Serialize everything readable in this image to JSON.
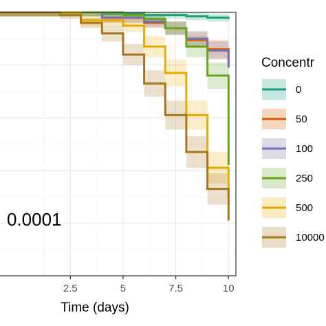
{
  "chart_data": {
    "type": "line",
    "xlabel": "Time (days)",
    "ylabel": "",
    "xlim": [
      -1.0,
      10.35
    ],
    "ylim": [
      0.0,
      1.0
    ],
    "x_ticks": [
      2.5,
      5,
      7.5,
      10
    ],
    "x_tick_labels": [
      "2.5",
      "5",
      "7.5",
      "10"
    ],
    "grid": true,
    "legend_title": "Concentr",
    "legend_position": "right",
    "annotation": "0.0001",
    "series": [
      {
        "name": "0",
        "color": "#1b9e77",
        "x": [
          -1,
          4,
          6,
          8,
          9,
          10
        ],
        "y": [
          1.0,
          0.995,
          0.99,
          0.985,
          0.98,
          0.975
        ],
        "ci": [
          0.015,
          0.015,
          0.015,
          0.015,
          0.015,
          0.015
        ]
      },
      {
        "name": "50",
        "color": "#d95f02",
        "x": [
          -1,
          4,
          6,
          7,
          8,
          9,
          10
        ],
        "y": [
          1.0,
          0.98,
          0.96,
          0.94,
          0.895,
          0.86,
          0.8
        ],
        "ci": [
          0.015,
          0.02,
          0.02,
          0.025,
          0.03,
          0.035,
          0.04
        ]
      },
      {
        "name": "100",
        "color": "#7570b3",
        "x": [
          -1,
          4,
          6,
          7,
          8,
          9,
          10
        ],
        "y": [
          1.0,
          0.98,
          0.965,
          0.94,
          0.9,
          0.855,
          0.79
        ],
        "ci": [
          0.015,
          0.02,
          0.02,
          0.025,
          0.03,
          0.035,
          0.045
        ]
      },
      {
        "name": "250",
        "color": "#66a61e",
        "x": [
          -1,
          5,
          6,
          7,
          8,
          9,
          10
        ],
        "y": [
          1.0,
          0.99,
          0.975,
          0.94,
          0.87,
          0.76,
          0.42
        ],
        "ci": [
          0.015,
          0.015,
          0.02,
          0.025,
          0.04,
          0.05,
          0.06
        ]
      },
      {
        "name": "500",
        "color": "#e6ab02",
        "x": [
          -1,
          3,
          5,
          6,
          7,
          8,
          9,
          10
        ],
        "y": [
          1.0,
          0.97,
          0.95,
          0.87,
          0.77,
          0.61,
          0.41,
          0.3
        ],
        "ci": [
          0.015,
          0.02,
          0.025,
          0.04,
          0.05,
          0.055,
          0.06,
          0.06
        ]
      },
      {
        "name": "10000",
        "color": "#a6761d",
        "x": [
          -1,
          2,
          3,
          4,
          5,
          6,
          7,
          8,
          9,
          10
        ],
        "y": [
          1.0,
          0.99,
          0.96,
          0.92,
          0.84,
          0.73,
          0.61,
          0.47,
          0.33,
          0.21
        ],
        "ci": [
          0.015,
          0.015,
          0.02,
          0.03,
          0.04,
          0.05,
          0.055,
          0.06,
          0.06,
          0.06
        ]
      }
    ]
  },
  "legend_display_labels": [
    "0",
    "50",
    "100",
    "250",
    "500",
    "10000"
  ]
}
